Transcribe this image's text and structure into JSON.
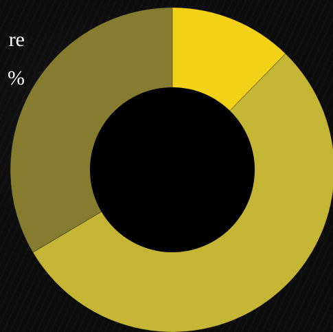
{
  "side_text": {
    "line1": "re",
    "line2": "%"
  },
  "colors": {
    "background": "#0b0b0b",
    "hole": "#000000"
  },
  "chart_data": {
    "type": "pie",
    "donut": true,
    "start_angle_deg": 0,
    "direction": "clockwise",
    "slices": [
      {
        "value": 12.3,
        "color": "#f2d117"
      },
      {
        "value": 54.2,
        "color": "#c4b634"
      },
      {
        "value": 33.5,
        "color": "#857c30"
      }
    ]
  }
}
